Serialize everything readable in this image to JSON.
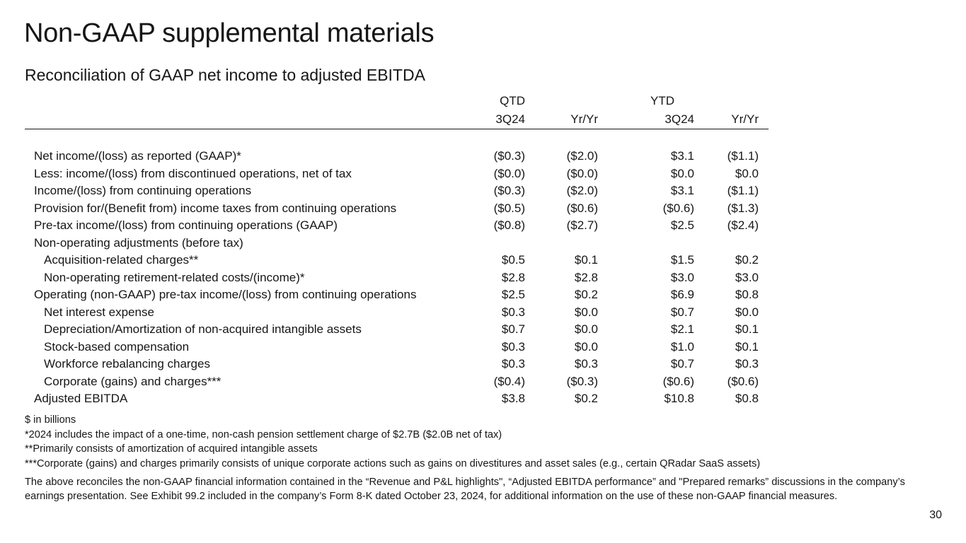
{
  "title": "Non-GAAP supplemental materials",
  "subtitle": "Reconciliation of GAAP net income to adjusted EBITDA",
  "table": {
    "group_headers": {
      "qtd": "QTD",
      "ytd": "YTD"
    },
    "columns": [
      "3Q24",
      "Yr/Yr",
      "3Q24",
      "Yr/Yr"
    ],
    "rows": [
      {
        "label": "Net income/(loss) as reported (GAAP)*",
        "values": [
          "($0.3)",
          "($2.0)",
          "$3.1",
          "($1.1)"
        ]
      },
      {
        "label": "Less: income/(loss) from discontinued operations, net of tax",
        "values": [
          "($0.0)",
          "($0.0)",
          "$0.0",
          "$0.0"
        ]
      },
      {
        "label": "Income/(loss) from continuing operations",
        "values": [
          "($0.3)",
          "($2.0)",
          "$3.1",
          "($1.1)"
        ]
      },
      {
        "label": "Provision for/(Benefit from) income taxes from continuing operations",
        "values": [
          "($0.5)",
          "($0.6)",
          "($0.6)",
          "($1.3)"
        ]
      },
      {
        "label": "Pre-tax income/(loss) from continuing operations (GAAP)",
        "values": [
          "($0.8)",
          "($2.7)",
          "$2.5",
          "($2.4)"
        ]
      },
      {
        "label": "Non-operating adjustments (before tax)",
        "values": [
          "",
          "",
          "",
          ""
        ]
      },
      {
        "label": "Acquisition-related charges**",
        "values": [
          "$0.5",
          "$0.1",
          "$1.5",
          "$0.2"
        ]
      },
      {
        "label": "Non-operating retirement-related costs/(income)*",
        "values": [
          "$2.8",
          "$2.8",
          "$3.0",
          "$3.0"
        ]
      },
      {
        "label": "Operating (non-GAAP) pre-tax income/(loss) from continuing operations",
        "values": [
          "$2.5",
          "$0.2",
          "$6.9",
          "$0.8"
        ]
      },
      {
        "label": "Net interest expense",
        "values": [
          "$0.3",
          "$0.0",
          "$0.7",
          "$0.0"
        ]
      },
      {
        "label": "Depreciation/Amortization of non-acquired intangible assets",
        "values": [
          "$0.7",
          "$0.0",
          "$2.1",
          "$0.1"
        ]
      },
      {
        "label": "Stock-based compensation",
        "values": [
          "$0.3",
          "$0.0",
          "$1.0",
          "$0.1"
        ]
      },
      {
        "label": "Workforce rebalancing charges",
        "values": [
          "$0.3",
          "$0.3",
          "$0.7",
          "$0.3"
        ]
      },
      {
        "label": "Corporate (gains) and charges***",
        "values": [
          "($0.4)",
          "($0.3)",
          "($0.6)",
          "($0.6)"
        ]
      },
      {
        "label": "Adjusted EBITDA",
        "values": [
          "$3.8",
          "$0.2",
          "$10.8",
          "$0.8"
        ]
      }
    ]
  },
  "footnotes": [
    "$ in billions",
    "*2024 includes the impact of a one-time, non-cash pension settlement charge of $2.7B ($2.0B net of tax)",
    "**Primarily consists of amortization of acquired intangible assets",
    "***Corporate (gains) and charges primarily consists of unique corporate actions such as gains on divestitures and asset sales (e.g., certain QRadar SaaS assets)"
  ],
  "disclaimer": "The above reconciles the non-GAAP financial information contained in the “Revenue and P&L highlights\", “Adjusted EBITDA performance” and \"Prepared remarks” discussions in the company’s earnings presentation. See Exhibit 99.2 included in the company’s Form 8-K dated October 23, 2024, for additional information on the use of these non-GAAP financial measures.",
  "page_number": "30"
}
